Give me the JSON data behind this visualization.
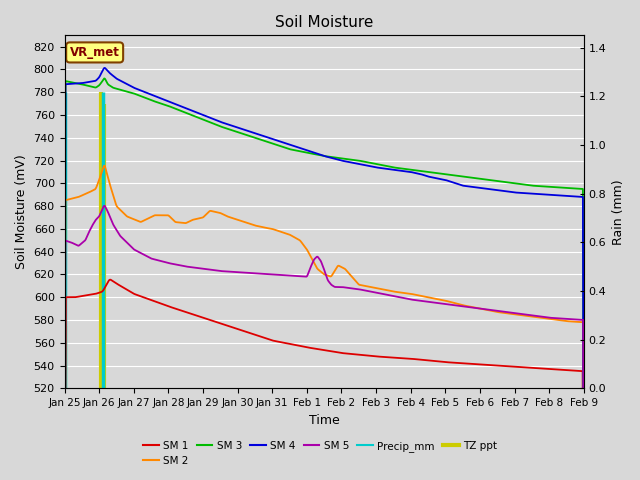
{
  "title": "Soil Moisture",
  "xlabel": "Time",
  "ylabel_left": "Soil Moisture (mV)",
  "ylabel_right": "Rain (mm)",
  "ylim_left": [
    520,
    830
  ],
  "ylim_right": [
    0.0,
    1.45
  ],
  "yticks_left": [
    520,
    540,
    560,
    580,
    600,
    620,
    640,
    660,
    680,
    700,
    720,
    740,
    760,
    780,
    800,
    820
  ],
  "yticks_right": [
    0.0,
    0.2,
    0.4,
    0.6,
    0.8,
    1.0,
    1.2,
    1.4
  ],
  "xtick_labels": [
    "Jan 25",
    "Jan 26",
    "Jan 27",
    "Jan 28",
    "Jan 29",
    "Jan 30",
    "Jan 31",
    "Feb 1",
    "Feb 2",
    "Feb 3",
    "Feb 4",
    "Feb 5",
    "Feb 6",
    "Feb 7",
    "Feb 8",
    "Feb 9"
  ],
  "bg_color": "#d8d8d8",
  "fig_color": "#d8d8d8",
  "grid_color": "#ffffff",
  "annotation_text": "VR_met",
  "annotation_bg": "#ffff80",
  "annotation_border": "#804000",
  "colors": {
    "SM1": "#dd0000",
    "SM2": "#ff8800",
    "SM3": "#00bb00",
    "SM4": "#0000dd",
    "SM5": "#aa00aa",
    "Precip": "#00cccc",
    "TZ_ppt": "#cccc00"
  }
}
